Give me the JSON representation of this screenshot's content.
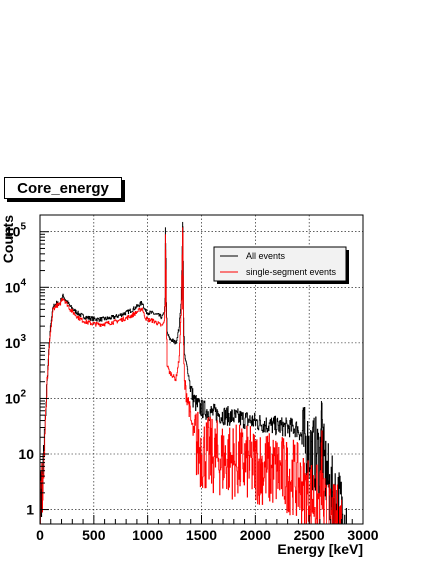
{
  "chart_data": {
    "type": "histogram",
    "title": "Core_energy",
    "xlabel": "Energy [keV]",
    "ylabel": "Counts",
    "xlim": [
      0,
      3000
    ],
    "ylim": [
      0.55,
      200000
    ],
    "yscale": "log",
    "grid": true,
    "legend_position": "top-right",
    "x_ticks": [
      "0",
      "500",
      "1000",
      "1500",
      "2000",
      "2500",
      "3000"
    ],
    "y_ticks": [
      {
        "value": 1,
        "label": "1"
      },
      {
        "value": 10,
        "label": "10"
      },
      {
        "value": 100,
        "label": "10",
        "exp": "2"
      },
      {
        "value": 1000,
        "label": "10",
        "exp": "3"
      },
      {
        "value": 10000,
        "label": "10",
        "exp": "4"
      },
      {
        "value": 100000,
        "label": "10",
        "exp": "5"
      }
    ],
    "series": [
      {
        "name": "All events",
        "color": "#000000",
        "x": [
          0,
          30,
          60,
          90,
          120,
          150,
          180,
          200,
          210,
          220,
          235,
          250,
          280,
          320,
          360,
          400,
          450,
          500,
          550,
          600,
          650,
          700,
          750,
          800,
          850,
          900,
          930,
          950,
          960,
          980,
          1000,
          1050,
          1100,
          1130,
          1150,
          1160,
          1165,
          1172,
          1180,
          1200,
          1230,
          1260,
          1290,
          1310,
          1325,
          1332,
          1340,
          1360,
          1380,
          1400,
          1420,
          1440,
          1460,
          1480,
          1500,
          1550,
          1600,
          1650,
          1700,
          1750,
          1800,
          1850,
          1900,
          1950,
          2000,
          2050,
          2100,
          2150,
          2200,
          2250,
          2300,
          2350,
          2400,
          2450,
          2500,
          2550,
          2600,
          2614,
          2630,
          2650,
          2680,
          2700,
          2750,
          2800,
          2850
        ],
        "y": [
          1,
          5,
          150,
          1500,
          4500,
          5200,
          5000,
          6500,
          7000,
          6800,
          6000,
          5500,
          4500,
          3800,
          3300,
          3000,
          2800,
          2700,
          2650,
          2700,
          2800,
          2950,
          3200,
          3500,
          3900,
          4500,
          5000,
          5300,
          4600,
          3700,
          3500,
          3400,
          3100,
          2900,
          3300,
          6000,
          120000,
          5000,
          1500,
          1200,
          1100,
          1000,
          1800,
          6000,
          150000,
          3000,
          600,
          400,
          250,
          150,
          100,
          85,
          75,
          70,
          65,
          60,
          55,
          52,
          50,
          48,
          46,
          44,
          42,
          40,
          38,
          36,
          34,
          33,
          32,
          31,
          30,
          30,
          28,
          15,
          12,
          10,
          9,
          90,
          8,
          5,
          3,
          2,
          1.5,
          1,
          0.6
        ]
      },
      {
        "name": "single-segment events",
        "color": "#ff0000",
        "x": [
          0,
          30,
          60,
          90,
          120,
          150,
          180,
          200,
          210,
          220,
          235,
          250,
          280,
          320,
          360,
          400,
          450,
          500,
          550,
          600,
          650,
          700,
          750,
          800,
          850,
          900,
          930,
          950,
          960,
          980,
          1000,
          1050,
          1100,
          1130,
          1150,
          1160,
          1165,
          1172,
          1180,
          1200,
          1230,
          1260,
          1290,
          1310,
          1325,
          1332,
          1340,
          1360,
          1380,
          1400,
          1420,
          1440,
          1460,
          1480,
          1500,
          1550,
          1600,
          1650,
          1700,
          1750,
          1800,
          1850,
          1900,
          1950,
          2000,
          2050,
          2100,
          2150,
          2200,
          2250,
          2300,
          2350,
          2400,
          2450,
          2500,
          2550,
          2600,
          2614,
          2630,
          2650,
          2680,
          2700,
          2750,
          2800
        ],
        "y": [
          1,
          4,
          120,
          1200,
          4000,
          4800,
          4700,
          6000,
          6500,
          6200,
          5500,
          5000,
          4000,
          3300,
          2800,
          2500,
          2300,
          2200,
          2150,
          2200,
          2300,
          2400,
          2600,
          2800,
          3100,
          3600,
          4000,
          4200,
          3400,
          2800,
          2600,
          2500,
          2200,
          2000,
          2300,
          4500,
          90000,
          3000,
          400,
          300,
          260,
          220,
          500,
          4000,
          120000,
          900,
          180,
          120,
          80,
          40,
          25,
          18,
          14,
          12,
          11,
          10,
          9,
          8.5,
          8,
          8,
          7.5,
          7,
          7,
          6.5,
          6,
          6,
          5.5,
          5,
          5,
          4.5,
          4,
          4,
          3,
          2,
          2,
          1.5,
          1.2,
          8,
          1,
          0.8,
          0.6,
          0.6,
          0.6,
          0.6
        ]
      }
    ]
  }
}
